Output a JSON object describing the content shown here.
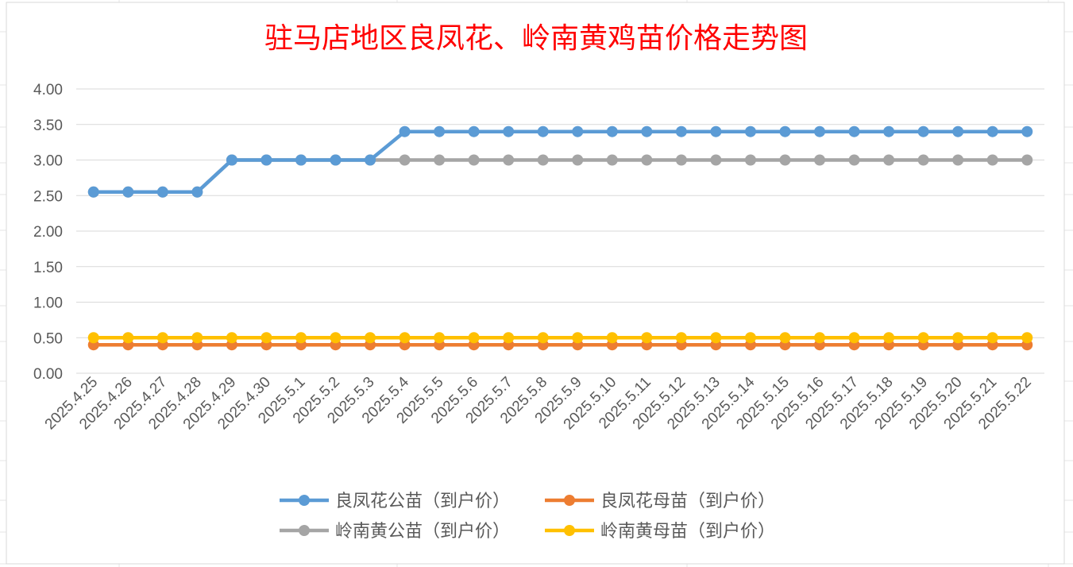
{
  "chart_data": {
    "type": "line",
    "title": "驻马店地区良凤花、岭南黄鸡苗价格走势图",
    "xlabel": "",
    "ylabel": "",
    "ylim": [
      0,
      4
    ],
    "ytick_labels": [
      "0.00",
      "0.50",
      "1.00",
      "1.50",
      "2.00",
      "2.50",
      "3.00",
      "3.50",
      "4.00"
    ],
    "grid": true,
    "legend_position": "bottom",
    "categories": [
      "2025.4.25",
      "2025.4.26",
      "2025.4.27",
      "2025.4.28",
      "2025.4.29",
      "2025.4.30",
      "2025.5.1",
      "2025.5.2",
      "2025.5.3",
      "2025.5.4",
      "2025.5.5",
      "2025.5.6",
      "2025.5.7",
      "2025.5.8",
      "2025.5.9",
      "2025.5.10",
      "2025.5.11",
      "2025.5.12",
      "2025.5.13",
      "2025.5.14",
      "2025.5.15",
      "2025.5.16",
      "2025.5.17",
      "2025.5.18",
      "2025.5.19",
      "2025.5.20",
      "2025.5.21",
      "2025.5.22"
    ],
    "series": [
      {
        "name": "良凤花公苗（到户价）",
        "color": "#5b9bd5",
        "values": [
          2.55,
          2.55,
          2.55,
          2.55,
          3.0,
          3.0,
          3.0,
          3.0,
          3.0,
          3.4,
          3.4,
          3.4,
          3.4,
          3.4,
          3.4,
          3.4,
          3.4,
          3.4,
          3.4,
          3.4,
          3.4,
          3.4,
          3.4,
          3.4,
          3.4,
          3.4,
          3.4,
          3.4
        ]
      },
      {
        "name": "良凤花母苗（到户价）",
        "color": "#ed7d31",
        "values": [
          0.4,
          0.4,
          0.4,
          0.4,
          0.4,
          0.4,
          0.4,
          0.4,
          0.4,
          0.4,
          0.4,
          0.4,
          0.4,
          0.4,
          0.4,
          0.4,
          0.4,
          0.4,
          0.4,
          0.4,
          0.4,
          0.4,
          0.4,
          0.4,
          0.4,
          0.4,
          0.4,
          0.4
        ]
      },
      {
        "name": "岭南黄公苗（到户价）",
        "color": "#a5a5a5",
        "values": [
          2.55,
          2.55,
          2.55,
          2.55,
          3.0,
          3.0,
          3.0,
          3.0,
          3.0,
          3.0,
          3.0,
          3.0,
          3.0,
          3.0,
          3.0,
          3.0,
          3.0,
          3.0,
          3.0,
          3.0,
          3.0,
          3.0,
          3.0,
          3.0,
          3.0,
          3.0,
          3.0,
          3.0
        ]
      },
      {
        "name": "岭南黄母苗（到户价）",
        "color": "#ffc000",
        "values": [
          0.5,
          0.5,
          0.5,
          0.5,
          0.5,
          0.5,
          0.5,
          0.5,
          0.5,
          0.5,
          0.5,
          0.5,
          0.5,
          0.5,
          0.5,
          0.5,
          0.5,
          0.5,
          0.5,
          0.5,
          0.5,
          0.5,
          0.5,
          0.5,
          0.5,
          0.5,
          0.5,
          0.5
        ]
      }
    ]
  },
  "colors": {
    "title": "#ff0000",
    "grid": "#d9d9d9",
    "axis_text": "#595959",
    "sheet_grid": "#e6e6e6"
  }
}
